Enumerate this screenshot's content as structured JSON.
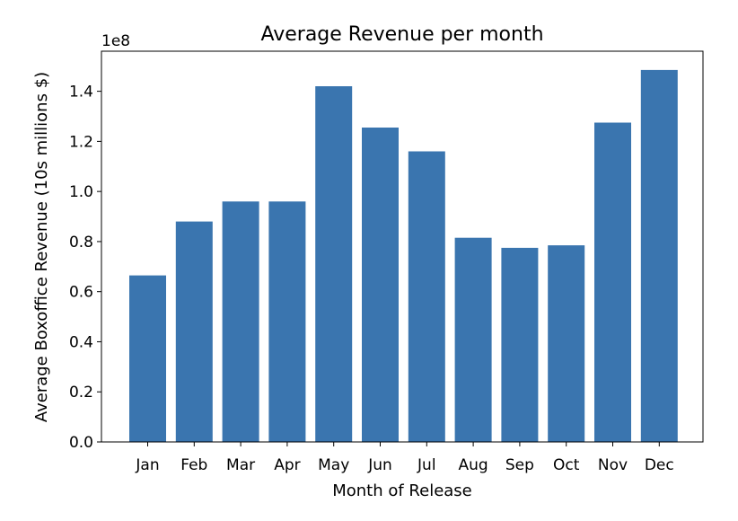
{
  "chart_data": {
    "type": "bar",
    "title": "Average Revenue per month",
    "xlabel": "Month of Release",
    "ylabel": "Average Boxoffice Revenue (10s millions $)",
    "y_offset_label": "1e8",
    "categories": [
      "Jan",
      "Feb",
      "Mar",
      "Apr",
      "May",
      "Jun",
      "Jul",
      "Aug",
      "Sep",
      "Oct",
      "Nov",
      "Dec"
    ],
    "values": [
      66500000,
      88000000,
      96000000,
      96000000,
      142000000,
      125500000,
      116000000,
      81500000,
      77500000,
      78500000,
      127500000,
      148500000
    ],
    "ylim": [
      0,
      156000000
    ],
    "yticks": [
      0,
      20000000,
      40000000,
      60000000,
      80000000,
      100000000,
      120000000,
      140000000
    ],
    "ytick_labels": [
      "0.0",
      "0.2",
      "0.4",
      "0.6",
      "0.8",
      "1.0",
      "1.2",
      "1.4"
    ],
    "bar_color": "#3a75af",
    "grid": false,
    "legend": "none"
  }
}
